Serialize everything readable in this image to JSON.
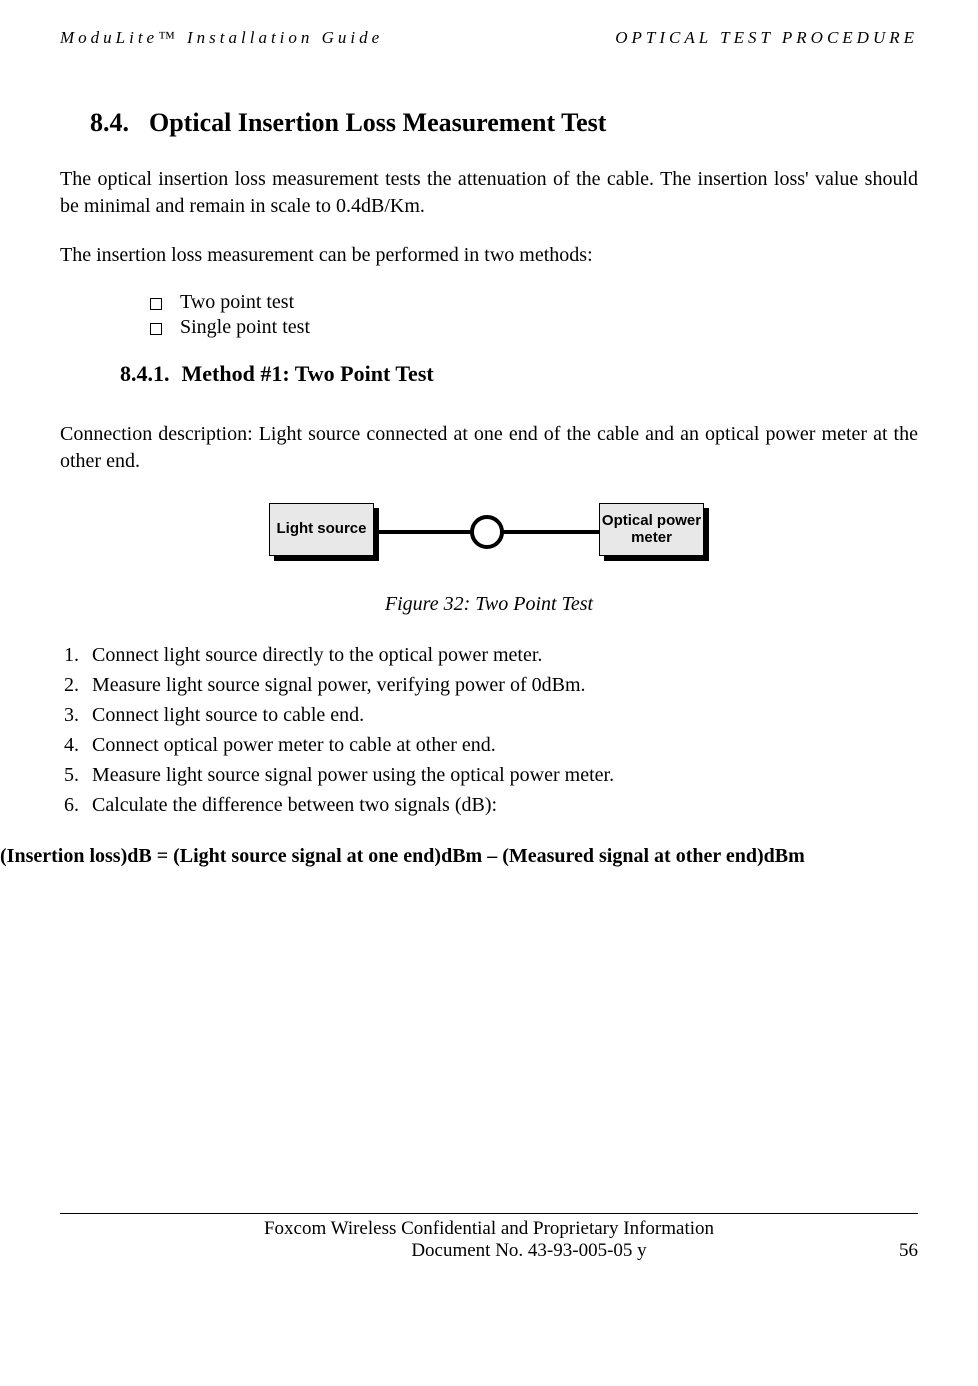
{
  "header": {
    "left": "ModuLite™ Installation Guide",
    "right": "OPTICAL TEST PROCEDURE"
  },
  "section": {
    "number": "8.4.",
    "title": "Optical Insertion Loss Measurement Test"
  },
  "intro": {
    "p1": "The optical insertion loss measurement tests the attenuation of the cable. The insertion loss' value should be minimal and remain in scale to 0.4dB/Km.",
    "p2": "The insertion loss measurement can be performed in two methods:"
  },
  "bullets": [
    "Two point test",
    "Single point test"
  ],
  "subsection": {
    "number": "8.4.1.",
    "title": "Method #1: Two Point Test"
  },
  "connection_desc": "Connection description: Light source connected at one end of the cable and an optical power meter at the other end.",
  "diagram": {
    "left_box": "Light source",
    "right_box": "Optical power meter"
  },
  "figure_caption": "Figure 32: Two Point Test",
  "steps": [
    "Connect light source directly to the optical power meter.",
    "Measure light source signal power, verifying power of 0dBm.",
    "Connect light source to cable end.",
    "Connect optical power meter to cable at other end.",
    "Measure light source signal power using the optical power meter.",
    "Calculate the difference between two signals (dB):"
  ],
  "formula": "(Insertion loss)dB = (Light source signal at one end)dBm – (Measured signal at other end)dBm",
  "footer": {
    "line1": "Foxcom Wireless Confidential and Proprietary Information",
    "doc": "Document No. 43-93-005-05 y",
    "page": "56"
  }
}
